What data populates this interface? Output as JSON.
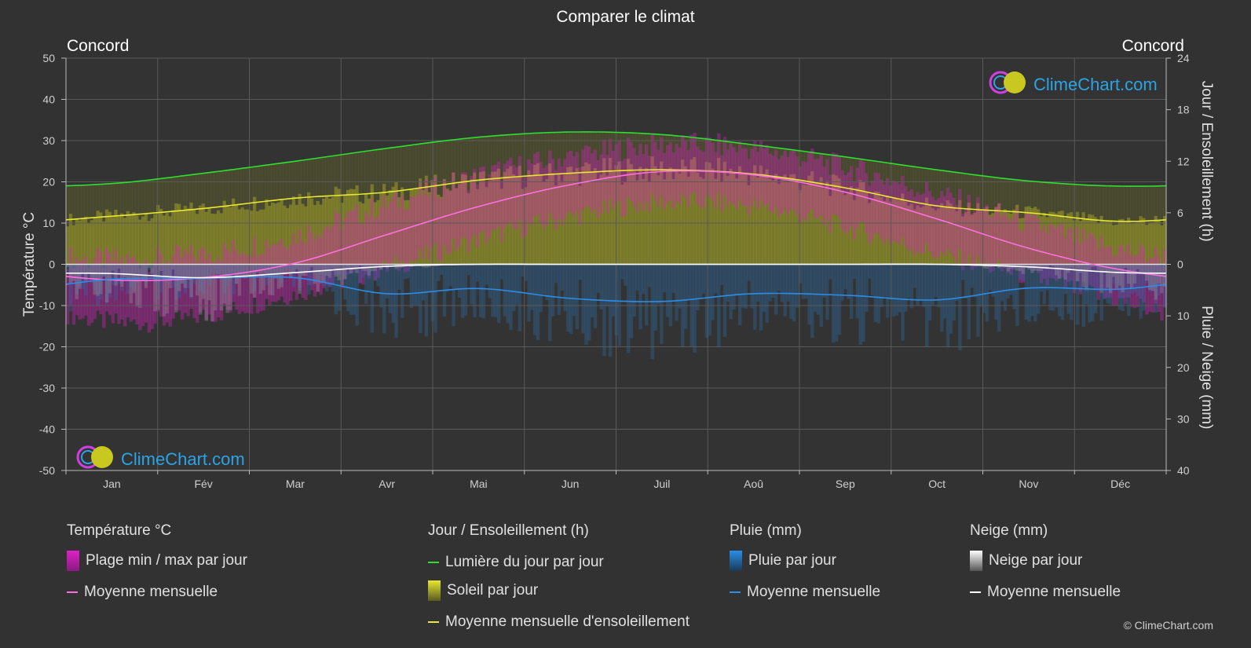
{
  "title": "Comparer le climat",
  "location_left": "Concord",
  "location_right": "Concord",
  "watermark": "ClimeChart.com",
  "copyright": "© ClimeChart.com",
  "legend": {
    "temperature": {
      "heading": "Température °C",
      "range_label": "Plage min / max par jour",
      "mean_label": "Moyenne mensuelle"
    },
    "sun": {
      "heading": "Jour / Ensoleillement (h)",
      "daylight_label": "Lumière du jour par jour",
      "sunshine_label": "Soleil par jour",
      "sun_mean_label": "Moyenne mensuelle d'ensoleillement"
    },
    "rain": {
      "heading": "Pluie (mm)",
      "rain_label": "Pluie par jour",
      "mean_label": "Moyenne mensuelle"
    },
    "snow": {
      "heading": "Neige (mm)",
      "snow_label": "Neige par jour",
      "mean_label": "Moyenne mensuelle"
    }
  },
  "colors": {
    "temp_mean": "#ff6fe0",
    "temp_range": "#e020c8",
    "daylight": "#2ee02e",
    "sunshine_fill": "#b4b428",
    "sun_mean": "#e8e830",
    "rain_mean": "#2a8ee8",
    "rain_bar": "#2a6ea8",
    "snow_mean": "#ffffff",
    "snow_bar": "#9a9a9a"
  },
  "chart_data": {
    "type": "area",
    "categories": [
      "Jan",
      "Fév",
      "Mar",
      "Avr",
      "Mai",
      "Jun",
      "Juil",
      "Aoû",
      "Sep",
      "Oct",
      "Nov",
      "Déc"
    ],
    "y_left": {
      "label": "Température °C",
      "range": [
        -50,
        50
      ],
      "ticks": [
        50,
        40,
        30,
        20,
        10,
        0,
        -10,
        -20,
        -30,
        -40,
        -50
      ]
    },
    "y_right_top": {
      "label": "Jour / Ensoleillement (h)",
      "range": [
        0,
        24
      ],
      "ticks": [
        24,
        18,
        12,
        6,
        0
      ]
    },
    "y_right_bottom": {
      "label": "Pluie / Neige (mm)",
      "range": [
        0,
        40
      ],
      "ticks": [
        0,
        10,
        20,
        30,
        40
      ]
    },
    "grid": true,
    "series": [
      {
        "name": "Moyenne mensuelle",
        "group": "temperature",
        "values": [
          -3.8,
          -3.2,
          0.3,
          7.2,
          14.0,
          19.3,
          22.5,
          21.7,
          17.5,
          11.0,
          3.9,
          -1.3
        ]
      },
      {
        "name": "Plage min / max par jour (max)",
        "group": "temperature",
        "values": [
          1.0,
          2.5,
          7.0,
          14.5,
          21.5,
          26.0,
          29.0,
          28.0,
          23.5,
          17.0,
          10.0,
          3.5
        ]
      },
      {
        "name": "Plage min / max par jour (min)",
        "group": "temperature",
        "values": [
          -14.0,
          -12.5,
          -7.0,
          -1.0,
          6.0,
          11.5,
          15.0,
          14.0,
          9.0,
          2.5,
          -3.0,
          -9.0
        ]
      },
      {
        "name": "Lumière du jour par jour",
        "group": "sun",
        "values": [
          9.4,
          10.6,
          12.0,
          13.5,
          14.8,
          15.4,
          15.1,
          13.9,
          12.5,
          11.0,
          9.7,
          9.1
        ]
      },
      {
        "name": "Soleil par jour",
        "group": "sun",
        "values": [
          5.6,
          6.5,
          7.7,
          8.4,
          9.8,
          10.6,
          11.0,
          10.5,
          8.9,
          6.8,
          6.0,
          5.0
        ]
      },
      {
        "name": "Moyenne mensuelle d'ensoleillement",
        "group": "sun",
        "values": [
          5.6,
          6.5,
          7.7,
          8.4,
          9.8,
          10.6,
          11.0,
          10.5,
          8.9,
          6.8,
          6.0,
          5.0
        ]
      },
      {
        "name": "Moyenne mensuelle (pluie)",
        "group": "rain",
        "values": [
          2.9,
          2.7,
          2.6,
          5.7,
          4.7,
          6.6,
          7.2,
          5.7,
          6.0,
          6.9,
          4.6,
          4.8
        ]
      },
      {
        "name": "Moyenne mensuelle (neige)",
        "group": "snow",
        "values": [
          1.8,
          2.6,
          1.6,
          0.4,
          0.0,
          0.0,
          0.0,
          0.0,
          0.0,
          0.0,
          0.5,
          1.6
        ]
      }
    ]
  }
}
